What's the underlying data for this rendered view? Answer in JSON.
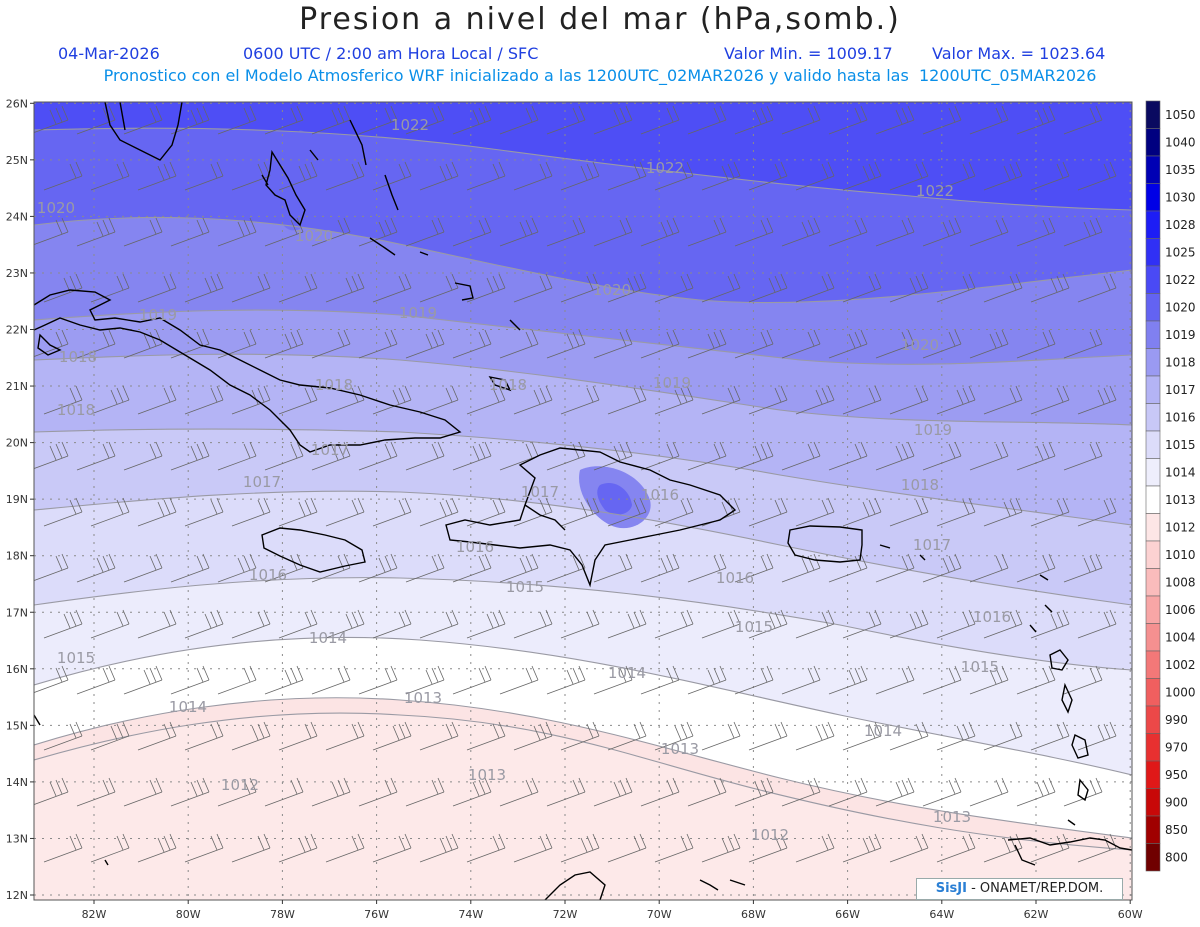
{
  "header": {
    "title": "Presion a nivel del mar (hPa,somb.)",
    "date": "04-Mar-2026",
    "time": "0600 UTC / 2:00 am Hora Local / SFC",
    "min_label": "Valor Min. = 1009.17",
    "max_label": "Valor Max. = 1023.64",
    "model_info": "Pronostico con el Modelo Atmosferico WRF inicializado a las 1200UTC_02MAR2026 y valido hasta las  1200UTC_05MAR2026"
  },
  "map": {
    "lat_labels": [
      "12N",
      "13N",
      "14N",
      "15N",
      "16N",
      "17N",
      "18N",
      "19N",
      "20N",
      "21N",
      "22N",
      "23N",
      "24N",
      "25N",
      "26N"
    ],
    "lon_labels": [
      "82W",
      "80W",
      "78W",
      "76W",
      "74W",
      "72W",
      "70W",
      "68W",
      "66W",
      "64W",
      "62W",
      "60W"
    ],
    "isobar_labels": [
      {
        "text": "1022"
      },
      {
        "text": "1022"
      },
      {
        "text": "1022"
      },
      {
        "text": "1020"
      },
      {
        "text": "1020"
      },
      {
        "text": "1020"
      },
      {
        "text": "1020"
      },
      {
        "text": "1019"
      },
      {
        "text": "1019"
      },
      {
        "text": "1019"
      },
      {
        "text": "1019"
      },
      {
        "text": "1018"
      },
      {
        "text": "1018"
      },
      {
        "text": "1018"
      },
      {
        "text": "1018"
      },
      {
        "text": "1018"
      },
      {
        "text": "1017"
      },
      {
        "text": "1017"
      },
      {
        "text": "1017"
      },
      {
        "text": "1017"
      },
      {
        "text": "1016"
      },
      {
        "text": "1016"
      },
      {
        "text": "1016"
      },
      {
        "text": "1016"
      },
      {
        "text": "1016"
      },
      {
        "text": "1015"
      },
      {
        "text": "1015"
      },
      {
        "text": "1015"
      },
      {
        "text": "1015"
      },
      {
        "text": "1014"
      },
      {
        "text": "1014"
      },
      {
        "text": "1014"
      },
      {
        "text": "1014"
      },
      {
        "text": "1013"
      },
      {
        "text": "1013"
      },
      {
        "text": "1013"
      },
      {
        "text": "1013"
      },
      {
        "text": "1012"
      },
      {
        "text": "1012"
      },
      {
        "text": "1012"
      }
    ]
  },
  "legend": {
    "levels": [
      "1050",
      "1040",
      "1035",
      "1030",
      "1028",
      "1025",
      "1022",
      "1020",
      "1019",
      "1018",
      "1017",
      "1016",
      "1015",
      "1014",
      "1013",
      "1012",
      "1010",
      "1008",
      "1006",
      "1004",
      "1002",
      "1000",
      "990",
      "970",
      "950",
      "900",
      "850",
      "800"
    ],
    "colors": [
      "#0a0a60",
      "#000080",
      "#0000b4",
      "#0000e6",
      "#1d1df5",
      "#3030f5",
      "#4a4af5",
      "#6363f2",
      "#8080f0",
      "#9a9af2",
      "#b4b4f5",
      "#c8c8f7",
      "#dcdcfa",
      "#eeeefc",
      "#ffffff",
      "#fde6e6",
      "#fcd2d2",
      "#fabcbc",
      "#f8a6a6",
      "#f59090",
      "#f37878",
      "#f05f5f",
      "#ec4848",
      "#e83030",
      "#e01818",
      "#c80808",
      "#a00000",
      "#700000"
    ]
  },
  "credit": {
    "brand": "SisJI",
    "org": " - ONAMET/REP.DOM."
  }
}
